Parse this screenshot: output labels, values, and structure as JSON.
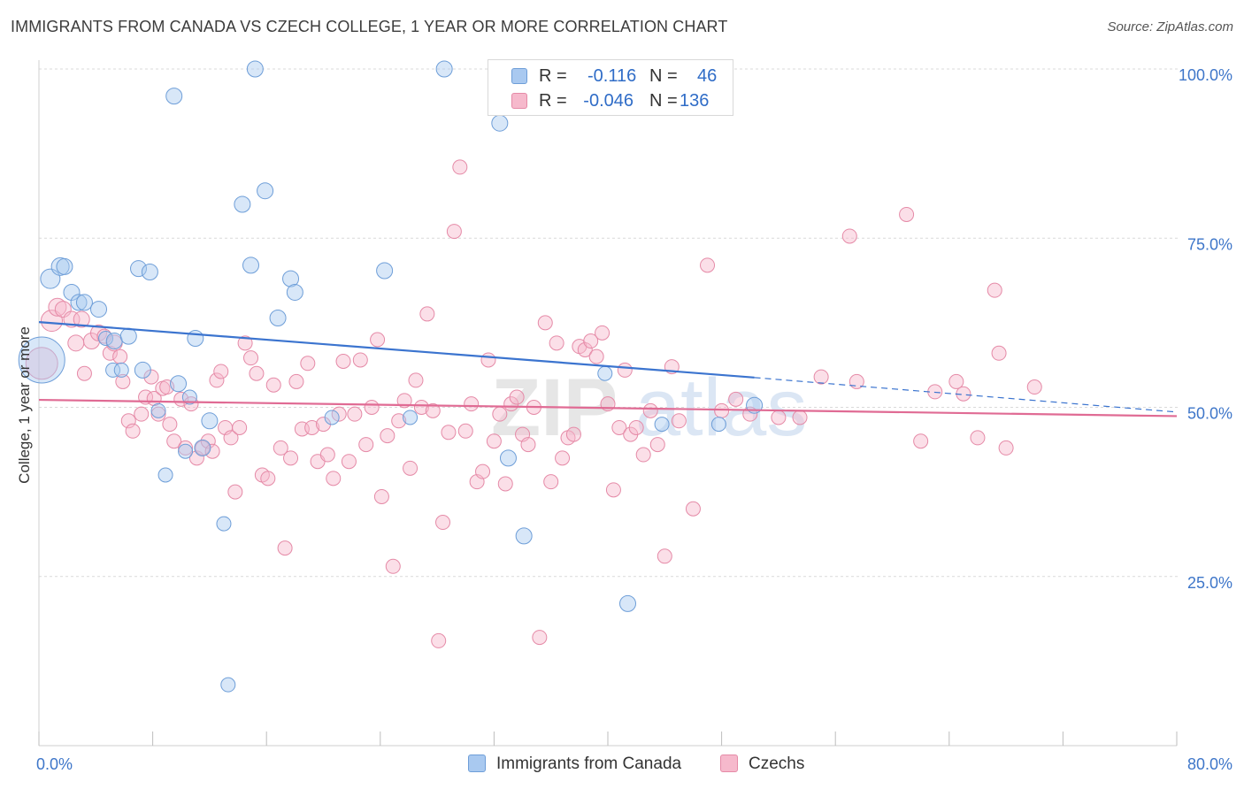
{
  "title": "IMMIGRANTS FROM CANADA VS CZECH COLLEGE, 1 YEAR OR MORE CORRELATION CHART",
  "source": "Source: ZipAtlas.com",
  "watermark": {
    "zip": "ZIP",
    "atlas": "atlas"
  },
  "legend_stats": {
    "r_label": "R =",
    "n_label": "N =",
    "rows": [
      {
        "r": "-0.116",
        "n": "46",
        "color": "#a9c9f0"
      },
      {
        "r": "-0.046",
        "n": "136",
        "color": "#f6b9cc"
      }
    ]
  },
  "chart_data": {
    "type": "scatter",
    "ylabel": "College, 1 year or more",
    "xlabel": "",
    "xlim": [
      0,
      80
    ],
    "ylim": [
      0,
      100
    ],
    "x_tick_labels": [
      {
        "value": 0,
        "label": "0.0%"
      },
      {
        "value": 80,
        "label": "80.0%"
      }
    ],
    "y_tick_labels": [
      {
        "value": 25,
        "label": "25.0%"
      },
      {
        "value": 50,
        "label": "50.0%"
      },
      {
        "value": 75,
        "label": "75.0%"
      },
      {
        "value": 100,
        "label": "100.0%"
      }
    ],
    "x_minor_ticks": [
      0,
      8,
      16,
      24,
      32,
      40,
      48,
      56,
      64,
      72,
      80
    ],
    "grid": "horizontal dashed",
    "legend_position": "bottom",
    "series": [
      {
        "name": "Immigrants from Canada",
        "color": "#a9c9f0",
        "stroke": "#6e9ed8",
        "trend": {
          "x0": 0,
          "y0": 62.6,
          "x1": 50.3,
          "y1": 54.4,
          "dash_to_x": 80,
          "dash_to_y": 49.3,
          "color": "#3b74cf"
        },
        "points": [
          [
            0.2,
            57.0,
            26
          ],
          [
            0.8,
            69.0,
            11
          ],
          [
            1.5,
            70.8,
            10
          ],
          [
            1.8,
            70.8,
            9
          ],
          [
            2.3,
            67.0,
            9
          ],
          [
            2.8,
            65.5,
            9
          ],
          [
            3.2,
            65.5,
            9
          ],
          [
            4.2,
            64.5,
            9
          ],
          [
            4.7,
            60.2,
            8
          ],
          [
            5.3,
            59.8,
            9
          ],
          [
            5.2,
            55.5,
            8
          ],
          [
            5.8,
            55.5,
            8
          ],
          [
            6.3,
            60.5,
            9
          ],
          [
            7.3,
            55.5,
            9
          ],
          [
            7.0,
            70.5,
            9
          ],
          [
            7.8,
            70.0,
            9
          ],
          [
            8.4,
            49.5,
            8
          ],
          [
            8.9,
            40.0,
            8
          ],
          [
            9.5,
            96.0,
            9
          ],
          [
            9.8,
            53.5,
            9
          ],
          [
            10.3,
            43.5,
            8
          ],
          [
            10.6,
            51.5,
            8
          ],
          [
            11.0,
            60.2,
            9
          ],
          [
            11.5,
            44.0,
            9
          ],
          [
            12.0,
            48.0,
            9
          ],
          [
            13.0,
            32.8,
            8
          ],
          [
            13.3,
            9.0,
            8
          ],
          [
            14.3,
            80.0,
            9
          ],
          [
            14.9,
            71.0,
            9
          ],
          [
            15.2,
            100.0,
            9
          ],
          [
            15.9,
            82.0,
            9
          ],
          [
            16.8,
            63.2,
            9
          ],
          [
            17.7,
            69.0,
            9
          ],
          [
            18.0,
            67.0,
            9
          ],
          [
            20.6,
            48.5,
            8
          ],
          [
            24.3,
            70.2,
            9
          ],
          [
            26.1,
            48.5,
            8
          ],
          [
            28.5,
            100.0,
            9
          ],
          [
            32.4,
            92.0,
            9
          ],
          [
            33.0,
            42.5,
            9
          ],
          [
            34.1,
            31.0,
            9
          ],
          [
            39.8,
            55.0,
            8
          ],
          [
            41.4,
            21.0,
            9
          ],
          [
            43.8,
            47.5,
            8
          ],
          [
            47.8,
            47.5,
            8
          ],
          [
            50.3,
            50.3,
            9
          ]
        ]
      },
      {
        "name": "Czechs",
        "color": "#f6b9cc",
        "stroke": "#e58aa7",
        "trend": {
          "x0": 0,
          "y0": 51.1,
          "x1": 80,
          "y1": 48.7,
          "color": "#e06b94"
        },
        "points": [
          [
            0.2,
            56.5,
            18
          ],
          [
            0.9,
            62.8,
            12
          ],
          [
            1.3,
            64.8,
            10
          ],
          [
            1.7,
            64.5,
            9
          ],
          [
            2.3,
            63.0,
            9
          ],
          [
            2.6,
            59.5,
            9
          ],
          [
            3.0,
            63.0,
            9
          ],
          [
            3.2,
            55.0,
            8
          ],
          [
            3.7,
            59.8,
            9
          ],
          [
            4.2,
            61.0,
            9
          ],
          [
            4.6,
            60.5,
            8
          ],
          [
            5.0,
            58.0,
            8
          ],
          [
            5.3,
            59.5,
            9
          ],
          [
            5.7,
            57.5,
            8
          ],
          [
            5.9,
            53.8,
            8
          ],
          [
            6.3,
            48.0,
            8
          ],
          [
            6.6,
            46.5,
            8
          ],
          [
            7.2,
            49.0,
            8
          ],
          [
            7.5,
            51.5,
            8
          ],
          [
            7.9,
            54.5,
            8
          ],
          [
            8.1,
            51.3,
            8
          ],
          [
            8.4,
            49.0,
            8
          ],
          [
            8.7,
            52.8,
            8
          ],
          [
            9.0,
            53.0,
            8
          ],
          [
            9.2,
            47.5,
            8
          ],
          [
            9.5,
            45.0,
            8
          ],
          [
            10.0,
            51.2,
            8
          ],
          [
            10.3,
            44.0,
            8
          ],
          [
            10.7,
            50.5,
            8
          ],
          [
            11.1,
            42.5,
            8
          ],
          [
            11.5,
            44.0,
            8
          ],
          [
            11.9,
            45.0,
            8
          ],
          [
            12.2,
            43.5,
            8
          ],
          [
            12.5,
            54.0,
            8
          ],
          [
            12.8,
            55.3,
            8
          ],
          [
            13.1,
            47.0,
            8
          ],
          [
            13.5,
            45.5,
            8
          ],
          [
            13.8,
            37.5,
            8
          ],
          [
            14.1,
            47.0,
            8
          ],
          [
            14.5,
            59.5,
            8
          ],
          [
            14.9,
            57.3,
            8
          ],
          [
            15.3,
            55.0,
            8
          ],
          [
            15.7,
            40.0,
            8
          ],
          [
            16.1,
            39.5,
            8
          ],
          [
            16.5,
            53.3,
            8
          ],
          [
            17.0,
            44.0,
            8
          ],
          [
            17.3,
            29.2,
            8
          ],
          [
            17.7,
            42.5,
            8
          ],
          [
            18.1,
            53.8,
            8
          ],
          [
            18.5,
            46.8,
            8
          ],
          [
            18.9,
            56.5,
            8
          ],
          [
            19.2,
            47.0,
            8
          ],
          [
            19.6,
            42.0,
            8
          ],
          [
            20.0,
            47.5,
            8
          ],
          [
            20.3,
            43.0,
            8
          ],
          [
            20.7,
            39.5,
            8
          ],
          [
            21.1,
            49.0,
            8
          ],
          [
            21.4,
            56.8,
            8
          ],
          [
            21.8,
            42.0,
            8
          ],
          [
            22.2,
            49.0,
            8
          ],
          [
            22.6,
            57.0,
            8
          ],
          [
            23.0,
            44.5,
            8
          ],
          [
            23.4,
            50.0,
            8
          ],
          [
            23.8,
            60.0,
            8
          ],
          [
            24.1,
            36.8,
            8
          ],
          [
            24.5,
            45.8,
            8
          ],
          [
            24.9,
            26.5,
            8
          ],
          [
            25.3,
            48.0,
            8
          ],
          [
            25.7,
            51.0,
            8
          ],
          [
            26.1,
            41.0,
            8
          ],
          [
            26.5,
            54.0,
            8
          ],
          [
            26.9,
            50.0,
            8
          ],
          [
            27.3,
            63.8,
            8
          ],
          [
            27.7,
            49.5,
            8
          ],
          [
            28.1,
            15.5,
            8
          ],
          [
            28.4,
            33.0,
            8
          ],
          [
            28.8,
            46.3,
            8
          ],
          [
            29.2,
            76.0,
            8
          ],
          [
            29.6,
            85.5,
            8
          ],
          [
            30.0,
            46.5,
            8
          ],
          [
            30.4,
            50.5,
            8
          ],
          [
            30.8,
            39.0,
            8
          ],
          [
            31.2,
            40.5,
            8
          ],
          [
            31.6,
            57.0,
            8
          ],
          [
            32.0,
            45.0,
            8
          ],
          [
            32.4,
            49.0,
            8
          ],
          [
            32.8,
            38.7,
            8
          ],
          [
            33.2,
            50.5,
            8
          ],
          [
            33.6,
            51.5,
            8
          ],
          [
            34.0,
            46.0,
            8
          ],
          [
            34.4,
            44.5,
            8
          ],
          [
            34.8,
            50.0,
            8
          ],
          [
            35.2,
            16.0,
            8
          ],
          [
            35.6,
            62.5,
            8
          ],
          [
            36.0,
            39.0,
            8
          ],
          [
            36.4,
            59.5,
            8
          ],
          [
            36.8,
            42.5,
            8
          ],
          [
            37.2,
            45.5,
            8
          ],
          [
            37.6,
            46.0,
            8
          ],
          [
            38.0,
            59.0,
            8
          ],
          [
            38.4,
            58.5,
            8
          ],
          [
            38.8,
            59.8,
            8
          ],
          [
            39.2,
            57.5,
            8
          ],
          [
            39.6,
            61.0,
            8
          ],
          [
            40.0,
            50.5,
            8
          ],
          [
            40.4,
            37.8,
            8
          ],
          [
            40.8,
            47.0,
            8
          ],
          [
            41.2,
            55.5,
            8
          ],
          [
            41.6,
            46.0,
            8
          ],
          [
            42.0,
            47.0,
            8
          ],
          [
            42.5,
            43.0,
            8
          ],
          [
            43.0,
            49.5,
            8
          ],
          [
            43.5,
            44.5,
            8
          ],
          [
            44.0,
            28.0,
            8
          ],
          [
            44.5,
            56.0,
            8
          ],
          [
            45.0,
            48.0,
            8
          ],
          [
            46.0,
            35.0,
            8
          ],
          [
            47.0,
            71.0,
            8
          ],
          [
            48.0,
            49.5,
            8
          ],
          [
            49.0,
            51.2,
            8
          ],
          [
            50.0,
            49.0,
            8
          ],
          [
            52.0,
            48.5,
            8
          ],
          [
            53.5,
            48.5,
            8
          ],
          [
            55.0,
            54.5,
            8
          ],
          [
            57.0,
            75.3,
            8
          ],
          [
            57.5,
            53.8,
            8
          ],
          [
            61.0,
            78.5,
            8
          ],
          [
            62.0,
            45.0,
            8
          ],
          [
            63.0,
            52.3,
            8
          ],
          [
            67.2,
            67.3,
            8
          ],
          [
            64.5,
            53.8,
            8
          ],
          [
            65.0,
            52.0,
            8
          ],
          [
            66.0,
            45.5,
            8
          ],
          [
            67.5,
            58.0,
            8
          ],
          [
            68.0,
            44.0,
            8
          ],
          [
            70.0,
            53.0,
            8
          ]
        ]
      }
    ]
  }
}
